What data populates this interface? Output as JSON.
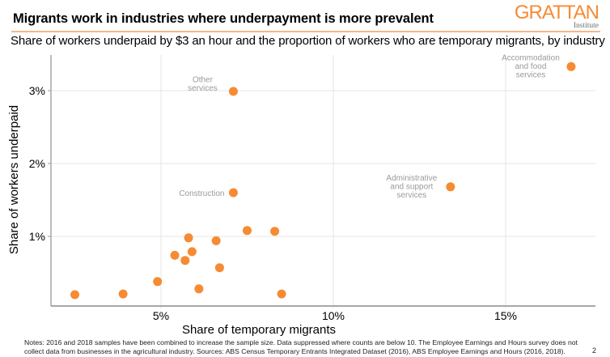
{
  "header": {
    "title": "Migrants work in industries where underpayment is more prevalent",
    "subtitle": "Share of workers underpaid by $3 an hour and the proportion of workers who are temporary migrants, by industry",
    "logo": {
      "main": "GRATTAN",
      "sub": "Institute"
    },
    "accent_color": "#F68B33"
  },
  "chart_data": {
    "type": "scatter",
    "title": "Migrants work in industries where underpayment is more prevalent",
    "subtitle": "Share of workers underpaid by $3 an hour and the proportion of workers who are temporary migrants, by industry",
    "xlabel": "Share of temporary migrants",
    "ylabel": "Share of workers underpaid",
    "xlim": [
      0.8,
      17.6
    ],
    "ylim": [
      0.05,
      3.5
    ],
    "x_ticks": [
      5,
      10,
      15
    ],
    "x_tick_labels": [
      "5%",
      "10%",
      "15%"
    ],
    "y_ticks": [
      1,
      2,
      3
    ],
    "y_tick_labels": [
      "1%",
      "2%",
      "3%"
    ],
    "grid": true,
    "legend": "none",
    "marker_color": "#F68B33",
    "points": [
      {
        "x": 2.5,
        "y": 0.2,
        "label": ""
      },
      {
        "x": 3.9,
        "y": 0.21,
        "label": ""
      },
      {
        "x": 4.9,
        "y": 0.38,
        "label": ""
      },
      {
        "x": 5.4,
        "y": 0.74,
        "label": ""
      },
      {
        "x": 5.7,
        "y": 0.67,
        "label": ""
      },
      {
        "x": 5.8,
        "y": 0.98,
        "label": ""
      },
      {
        "x": 5.9,
        "y": 0.79,
        "label": ""
      },
      {
        "x": 6.1,
        "y": 0.28,
        "label": ""
      },
      {
        "x": 6.6,
        "y": 0.94,
        "label": ""
      },
      {
        "x": 6.7,
        "y": 0.57,
        "label": ""
      },
      {
        "x": 7.5,
        "y": 1.08,
        "label": ""
      },
      {
        "x": 8.3,
        "y": 1.07,
        "label": ""
      },
      {
        "x": 8.5,
        "y": 0.21,
        "label": ""
      },
      {
        "x": 7.1,
        "y": 1.6,
        "label": "Construction",
        "label_pos": "left"
      },
      {
        "x": 7.1,
        "y": 2.99,
        "label": "Other\nservices",
        "label_pos": "upper-left"
      },
      {
        "x": 13.4,
        "y": 1.68,
        "label": "Administrative\nand support\nservices",
        "label_pos": "left"
      },
      {
        "x": 16.9,
        "y": 3.33,
        "label": "Accommodation\nand food\nservices",
        "label_pos": "left"
      }
    ]
  },
  "footer": {
    "notes": "Notes: 2016 and 2018 samples have been combined to increase the sample size. Data suppressed where counts are below 10. The Employee Earnings and Hours survey does not collect data from businesses in the agricultural industry. Sources: ABS Census Temporary Entrants Integrated Dataset (2016), ABS Employee Earnings and Hours (2016, 2018).",
    "page_number": "2"
  }
}
